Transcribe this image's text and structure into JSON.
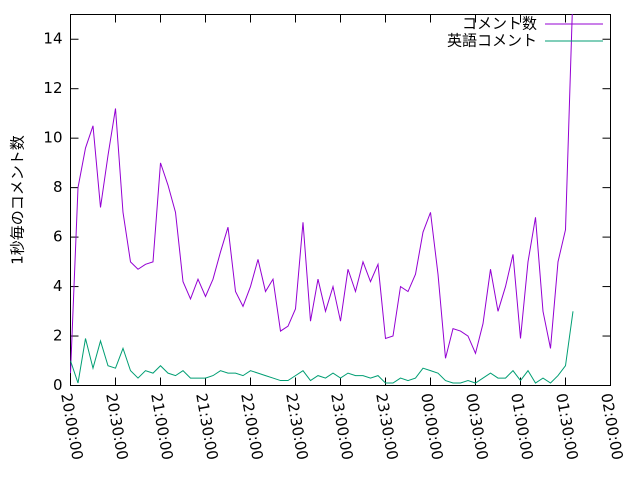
{
  "chart_data": {
    "type": "line",
    "y_label": "1秒毎のコメント数",
    "x": [
      "20:00:00",
      "20:05:00",
      "20:10:00",
      "20:15:00",
      "20:20:00",
      "20:25:00",
      "20:30:00",
      "20:35:00",
      "20:40:00",
      "20:45:00",
      "20:50:00",
      "20:55:00",
      "21:00:00",
      "21:05:00",
      "21:10:00",
      "21:15:00",
      "21:20:00",
      "21:25:00",
      "21:30:00",
      "21:35:00",
      "21:40:00",
      "21:45:00",
      "21:50:00",
      "21:55:00",
      "22:00:00",
      "22:05:00",
      "22:10:00",
      "22:15:00",
      "22:20:00",
      "22:25:00",
      "22:30:00",
      "22:35:00",
      "22:40:00",
      "22:45:00",
      "22:50:00",
      "22:55:00",
      "23:00:00",
      "23:05:00",
      "23:10:00",
      "23:15:00",
      "23:20:00",
      "23:25:00",
      "23:30:00",
      "23:35:00",
      "23:40:00",
      "23:45:00",
      "23:50:00",
      "23:55:00",
      "00:00:00",
      "00:05:00",
      "00:10:00",
      "00:15:00",
      "00:20:00",
      "00:25:00",
      "00:30:00",
      "00:35:00",
      "00:40:00",
      "00:45:00",
      "00:50:00",
      "00:55:00",
      "01:00:00",
      "01:05:00",
      "01:10:00",
      "01:15:00",
      "01:20:00",
      "01:25:00",
      "01:30:00",
      "01:35:00"
    ],
    "series": [
      {
        "name": "コメント数",
        "color": "#9400d3",
        "values": [
          0.5,
          8,
          9.6,
          10.5,
          7.2,
          9.3,
          11.2,
          7,
          5,
          4.7,
          4.9,
          5,
          9,
          8.1,
          7,
          4.2,
          3.5,
          4.3,
          3.6,
          4.3,
          5.4,
          6.4,
          3.8,
          3.2,
          4,
          5.1,
          3.8,
          4.3,
          2.2,
          2.4,
          3.1,
          6.6,
          2.6,
          4.3,
          3,
          4,
          2.6,
          4.7,
          3.8,
          5,
          4.2,
          4.9,
          1.9,
          2,
          4,
          3.8,
          4.5,
          6.2,
          7,
          4.5,
          1.1,
          2.3,
          2.2,
          2,
          1.3,
          2.5,
          4.7,
          3,
          4,
          5.3,
          1.9,
          5,
          6.8,
          3,
          1.5,
          5,
          6.3,
          16
        ]
      },
      {
        "name": "英語コメント",
        "color": "#009e73",
        "values": [
          1,
          0.1,
          1.9,
          0.7,
          1.8,
          0.8,
          0.7,
          1.5,
          0.6,
          0.3,
          0.6,
          0.5,
          0.8,
          0.5,
          0.4,
          0.6,
          0.3,
          0.3,
          0.3,
          0.4,
          0.6,
          0.5,
          0.5,
          0.4,
          0.6,
          0.5,
          0.4,
          0.3,
          0.2,
          0.2,
          0.4,
          0.6,
          0.2,
          0.4,
          0.3,
          0.5,
          0.3,
          0.5,
          0.4,
          0.4,
          0.3,
          0.4,
          0.1,
          0.1,
          0.3,
          0.2,
          0.3,
          0.7,
          0.6,
          0.5,
          0.2,
          0.1,
          0.1,
          0.2,
          0.1,
          0.3,
          0.5,
          0.3,
          0.3,
          0.6,
          0.2,
          0.6,
          0.1,
          0.3,
          0.1,
          0.4,
          0.8,
          3
        ]
      }
    ],
    "xlim": [
      "20:00:00",
      "02:00:00"
    ],
    "xticks": [
      "20:00:00",
      "20:30:00",
      "21:00:00",
      "21:30:00",
      "22:00:00",
      "22:30:00",
      "23:00:00",
      "23:30:00",
      "00:00:00",
      "00:30:00",
      "01:00:00",
      "01:30:00",
      "02:00:00"
    ],
    "ylim": [
      0,
      15
    ],
    "yticks": [
      0,
      2,
      4,
      6,
      8,
      10,
      12,
      14
    ],
    "legend": "top-right"
  }
}
